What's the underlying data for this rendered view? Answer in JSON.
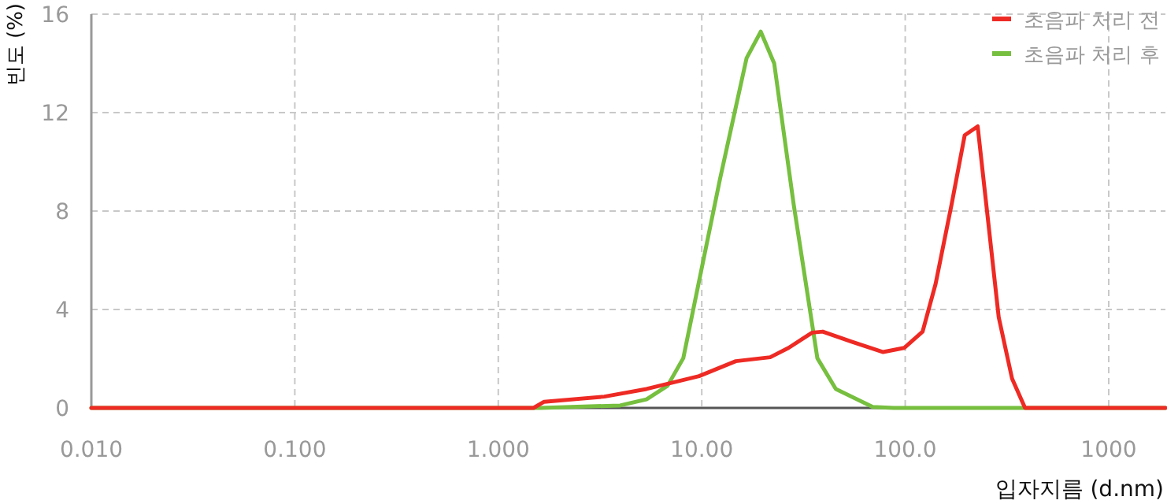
{
  "chart_data": {
    "type": "line",
    "xlabel": "입자지름 (d.nm)",
    "ylabel": "빈도 (%)",
    "log": "x",
    "xlim": [
      0.01,
      1900
    ],
    "ylim": [
      0,
      16
    ],
    "xticks": [
      {
        "value": 0.01,
        "label": "0.010"
      },
      {
        "value": 0.1,
        "label": "0.100"
      },
      {
        "value": 1,
        "label": "1.000"
      },
      {
        "value": 10,
        "label": "10.00"
      },
      {
        "value": 100,
        "label": "100.0"
      },
      {
        "value": 1000,
        "label": "1000"
      }
    ],
    "yticks": [
      0,
      4,
      8,
      12,
      16
    ],
    "grid": true,
    "legend": "top right",
    "marker": "none",
    "line_style": "solid",
    "series": [
      {
        "name": "초음파 처리 전",
        "color": "#ee2a24",
        "x": [
          0.01,
          1.49,
          1.68,
          3.32,
          5.35,
          9.7,
          14.7,
          21.7,
          26.7,
          34.9,
          39.3,
          54.5,
          77.9,
          98.8,
          121.7,
          141,
          169,
          196,
          227,
          288,
          335,
          388,
          1900
        ],
        "values": [
          0,
          0,
          0.25,
          0.46,
          0.77,
          1.29,
          1.9,
          2.06,
          2.44,
          3.06,
          3.1,
          2.69,
          2.27,
          2.44,
          3.1,
          5.04,
          8.27,
          11.08,
          11.44,
          3.69,
          1.19,
          0,
          0
        ]
      },
      {
        "name": "초음파 처리 후",
        "color": "#76bf3f",
        "x": [
          0.01,
          1.62,
          3.97,
          5.35,
          6.79,
          8.11,
          9.7,
          12.3,
          16.6,
          19.5,
          22.7,
          28.3,
          37.0,
          45.6,
          69.2,
          87.7,
          388,
          1900
        ],
        "values": [
          0,
          0,
          0.1,
          0.35,
          0.9,
          2.02,
          5.15,
          9.31,
          14.21,
          15.29,
          14.0,
          8.27,
          2.02,
          0.77,
          0.04,
          0,
          0,
          0
        ]
      }
    ]
  }
}
